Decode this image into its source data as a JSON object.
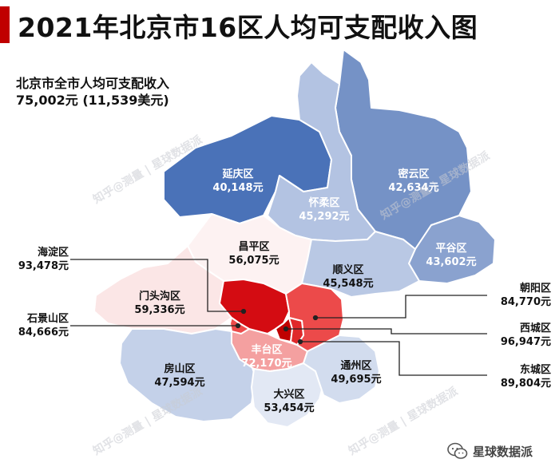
{
  "title": "2021年北京市16区人均可支配收入图",
  "summary": {
    "line1": "北京市全市人均可支配收入",
    "line2": "75,002元 (11,539美元)"
  },
  "districts": {
    "yanqing": {
      "name": "延庆区",
      "value": "40,148元",
      "color": "#4a72b8"
    },
    "miyun": {
      "name": "密云区",
      "value": "42,634元",
      "color": "#7592c6"
    },
    "huairou": {
      "name": "怀柔区",
      "value": "45,292元",
      "color": "#b3c3e2"
    },
    "pinggu": {
      "name": "平谷区",
      "value": "43,602元",
      "color": "#8aa2cf"
    },
    "changping": {
      "name": "昌平区",
      "value": "56,075元",
      "color": "#fdf2f2"
    },
    "shunyi": {
      "name": "顺义区",
      "value": "45,548元",
      "color": "#b9c8e4"
    },
    "mentougou": {
      "name": "门头沟区",
      "value": "59,336元",
      "color": "#fbe6e6"
    },
    "haidian": {
      "name": "海淀区",
      "value": "93,478元",
      "color": "#d40c12"
    },
    "shijingshan": {
      "name": "石景山区",
      "value": "84,666元",
      "color": "#ec4a4a"
    },
    "chaoyang": {
      "name": "朝阳区",
      "value": "84,770元",
      "color": "#ec4a4a"
    },
    "xicheng": {
      "name": "西城区",
      "value": "96,947元",
      "color": "#c00000"
    },
    "dongcheng": {
      "name": "东城区",
      "value": "89,804元",
      "color": "#e0282a"
    },
    "fengtai": {
      "name": "丰台区",
      "value": "72,170元",
      "color": "#f4a0a0"
    },
    "fangshan": {
      "name": "房山区",
      "value": "47,594元",
      "color": "#c4d1e9"
    },
    "tongzhou": {
      "name": "通州区",
      "value": "49,695元",
      "color": "#d2dcee"
    },
    "daxing": {
      "name": "大兴区",
      "value": "53,454元",
      "color": "#e2e8f4"
    }
  },
  "watermark": "知乎@测量 | 星球数据派",
  "logo": {
    "text": "星球数据派",
    "icon": "wechat-icon"
  }
}
